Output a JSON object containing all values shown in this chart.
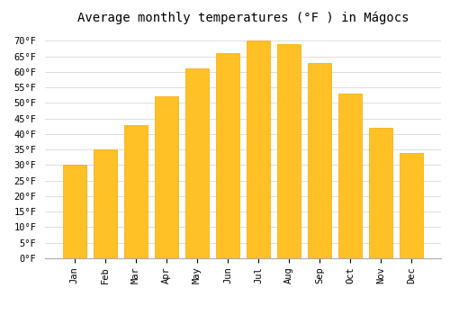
{
  "title": "Average monthly temperatures (°F ) in Mágocs",
  "months": [
    "Jan",
    "Feb",
    "Mar",
    "Apr",
    "May",
    "Jun",
    "Jul",
    "Aug",
    "Sep",
    "Oct",
    "Nov",
    "Dec"
  ],
  "values": [
    30,
    35,
    43,
    52,
    61,
    66,
    70,
    69,
    63,
    53,
    42,
    34
  ],
  "bar_color": "#FFC125",
  "bar_edge_color": "#FFA500",
  "background_color": "#FFFFFF",
  "grid_color": "#DDDDDD",
  "ylim": [
    0,
    73
  ],
  "yticks": [
    0,
    5,
    10,
    15,
    20,
    25,
    30,
    35,
    40,
    45,
    50,
    55,
    60,
    65,
    70
  ],
  "title_fontsize": 10,
  "tick_fontsize": 7.5,
  "font_family": "monospace"
}
